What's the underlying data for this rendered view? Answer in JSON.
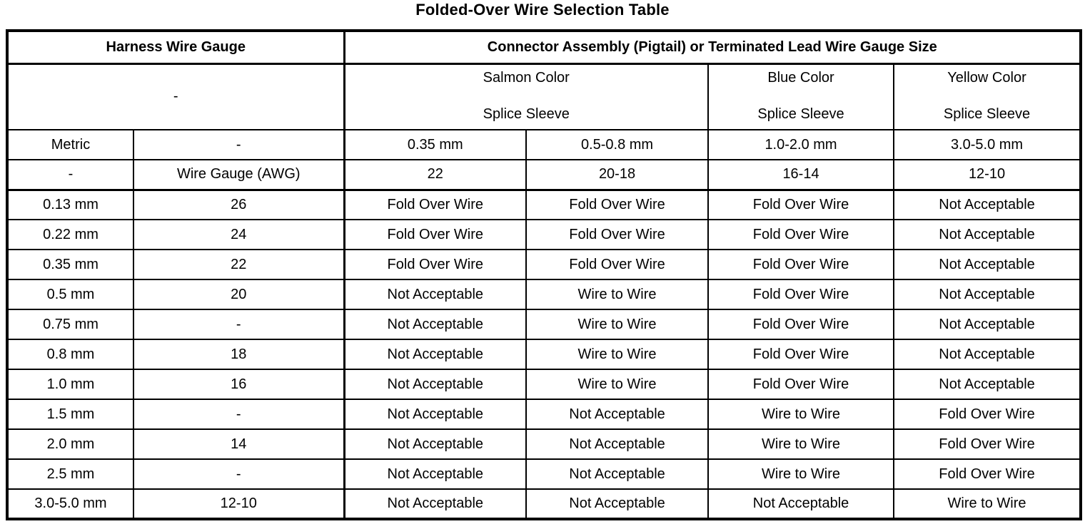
{
  "title": "Folded-Over Wire Selection Table",
  "colors": {
    "background": "#ffffff",
    "border": "#000000",
    "text": "#000000"
  },
  "table": {
    "header": {
      "harness": "Harness Wire Gauge",
      "connector": "Connector Assembly (Pigtail) or Terminated Lead Wire Gauge Size"
    },
    "sleeve_row": {
      "harness_dash": "-",
      "salmon": {
        "line1": "Salmon Color",
        "line2": "Splice Sleeve"
      },
      "blue": {
        "line1": "Blue Color",
        "line2": "Splice Sleeve"
      },
      "yellow": {
        "line1": "Yellow Color",
        "line2": "Splice Sleeve"
      }
    },
    "metric_row": [
      "Metric",
      "-",
      "0.35 mm",
      "0.5-0.8 mm",
      "1.0-2.0 mm",
      "3.0-5.0 mm"
    ],
    "awg_row": [
      "-",
      "Wire Gauge (AWG)",
      "22",
      "20-18",
      "16-14",
      "12-10"
    ],
    "rows": [
      [
        "0.13 mm",
        "26",
        "Fold Over Wire",
        "Fold Over Wire",
        "Fold Over Wire",
        "Not Acceptable"
      ],
      [
        "0.22 mm",
        "24",
        "Fold Over Wire",
        "Fold Over Wire",
        "Fold Over Wire",
        "Not Acceptable"
      ],
      [
        "0.35 mm",
        "22",
        "Fold Over Wire",
        "Fold Over Wire",
        "Fold Over Wire",
        "Not Acceptable"
      ],
      [
        "0.5 mm",
        "20",
        "Not Acceptable",
        "Wire to Wire",
        "Fold Over Wire",
        "Not Acceptable"
      ],
      [
        "0.75 mm",
        "-",
        "Not Acceptable",
        "Wire to Wire",
        "Fold Over Wire",
        "Not Acceptable"
      ],
      [
        "0.8 mm",
        "18",
        "Not Acceptable",
        "Wire to Wire",
        "Fold Over Wire",
        "Not Acceptable"
      ],
      [
        "1.0 mm",
        "16",
        "Not Acceptable",
        "Wire to Wire",
        "Fold Over Wire",
        "Not Acceptable"
      ],
      [
        "1.5 mm",
        "-",
        "Not Acceptable",
        "Not Acceptable",
        "Wire to Wire",
        "Fold Over Wire"
      ],
      [
        "2.0 mm",
        "14",
        "Not Acceptable",
        "Not Acceptable",
        "Wire to Wire",
        "Fold Over Wire"
      ],
      [
        "2.5 mm",
        "-",
        "Not Acceptable",
        "Not Acceptable",
        "Wire to Wire",
        "Fold Over Wire"
      ],
      [
        "3.0-5.0 mm",
        "12-10",
        "Not Acceptable",
        "Not Acceptable",
        "Not Acceptable",
        "Wire to Wire"
      ]
    ]
  }
}
